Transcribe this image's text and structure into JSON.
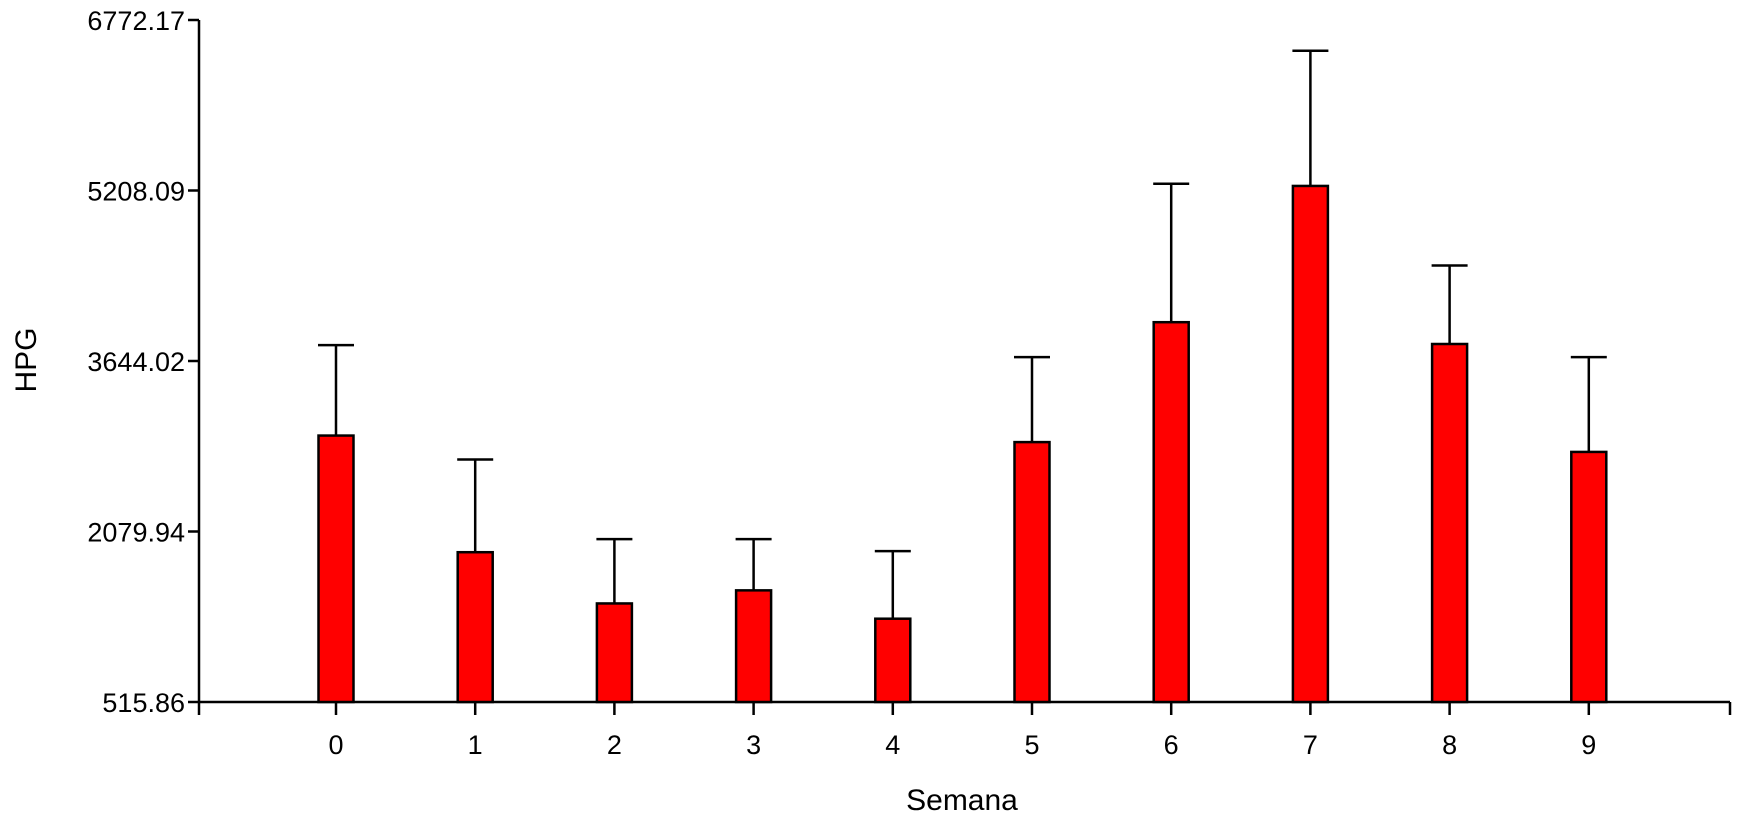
{
  "chart_data": {
    "type": "bar",
    "xlabel": "Semana",
    "ylabel": "HPG",
    "ylim": [
      515.86,
      6772.17
    ],
    "yticks": [
      "515.86",
      "2079.94",
      "3644.02",
      "5208.09",
      "6772.17"
    ],
    "categories": [
      "0",
      "1",
      "2",
      "3",
      "4",
      "5",
      "6",
      "7",
      "8",
      "9"
    ],
    "values": [
      2960,
      1890,
      1420,
      1540,
      1280,
      2900,
      4000,
      5250,
      3800,
      2810
    ],
    "error_upper": [
      3790,
      2740,
      2010,
      2010,
      1900,
      3680,
      5270,
      6490,
      4520,
      3680
    ],
    "bar_color": "#ff0000",
    "grid": false,
    "legend": "none"
  }
}
